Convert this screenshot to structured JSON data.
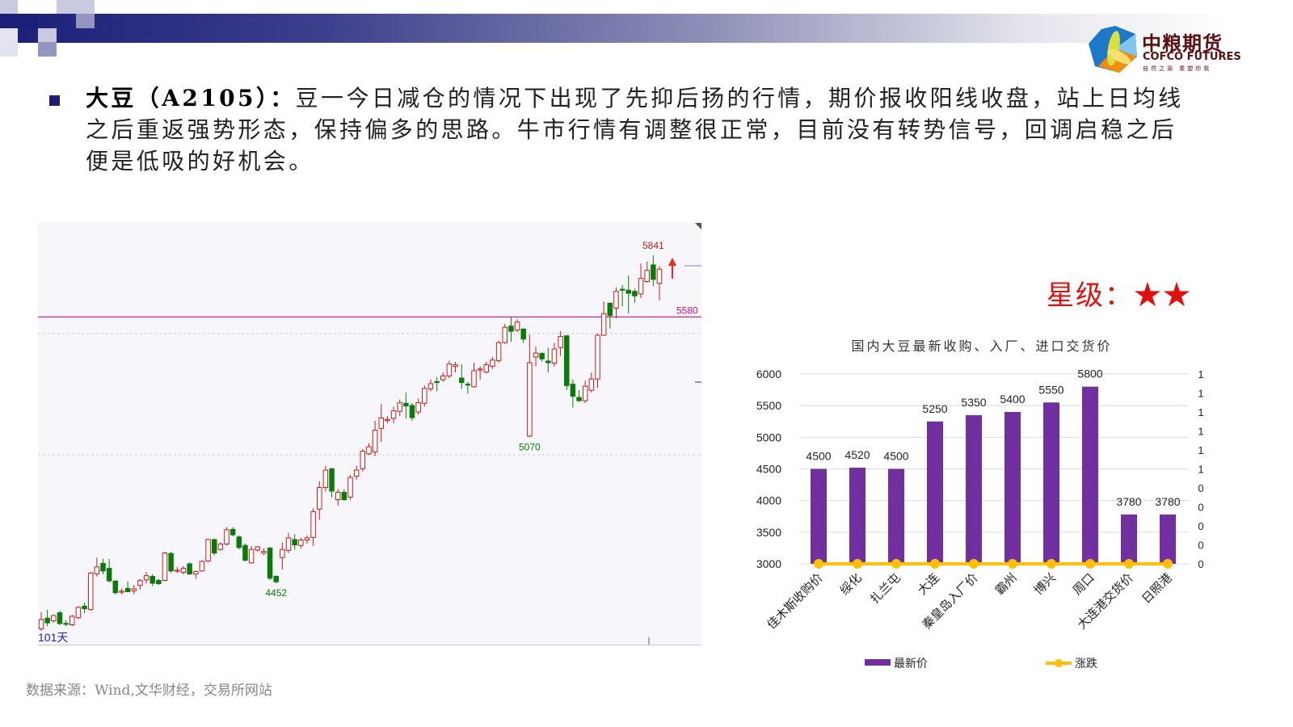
{
  "header": {
    "logo_cn": "中粮期货",
    "logo_en": "COFCO FUTURES",
    "logo_slogan": "自然之源 重塑你我",
    "accent_color": "#1b1f78"
  },
  "paragraph": {
    "lead": "大豆（A2105）：",
    "lines": [
      "豆一今日减仓的情况下出现了先抑后扬的行情，期价报收阳线收盘，站上日均线",
      "之后重返强势形态，保持偏多的思路。牛市行情有调整很正常，目前没有转势信号，回调启稳之后",
      "便是低吸的好机会。"
    ]
  },
  "rating": {
    "label": "星级：",
    "stars": "★★",
    "count": 2,
    "color": "#e01010"
  },
  "source": "数据来源：Wind,文华财经，交易所网站",
  "chart_data": [
    {
      "type": "candlestick",
      "period_label": "101天",
      "up_color": "#d01818",
      "down_color": "#0a7a0a",
      "annotations": {
        "high": 5841,
        "low_1": 4452,
        "low_2": 5070,
        "line_label": "5580",
        "line_value": 5580,
        "line_color": "#d0106a"
      },
      "candle_format": [
        "open",
        "close",
        "high",
        "low"
      ],
      "candles": [
        [
          4259,
          4298,
          4330,
          4250
        ],
        [
          4304,
          4284,
          4340,
          4270
        ],
        [
          4293,
          4315,
          4320,
          4285
        ],
        [
          4327,
          4281,
          4335,
          4275
        ],
        [
          4282,
          4280,
          4295,
          4270
        ],
        [
          4276,
          4312,
          4318,
          4270
        ],
        [
          4306,
          4350,
          4355,
          4300
        ],
        [
          4355,
          4344,
          4370,
          4325
        ],
        [
          4341,
          4495,
          4500,
          4335
        ],
        [
          4492,
          4521,
          4560,
          4480
        ],
        [
          4536,
          4504,
          4555,
          4490
        ],
        [
          4515,
          4462,
          4555,
          4455
        ],
        [
          4461,
          4412,
          4465,
          4405
        ],
        [
          4418,
          4418,
          4430,
          4405
        ],
        [
          4430,
          4416,
          4460,
          4415
        ],
        [
          4420,
          4428,
          4445,
          4405
        ],
        [
          4443,
          4463,
          4470,
          4425
        ],
        [
          4466,
          4484,
          4500,
          4450
        ],
        [
          4481,
          4452,
          4490,
          4440
        ],
        [
          4464,
          4450,
          4470,
          4445
        ],
        [
          4464,
          4580,
          4585,
          4460
        ],
        [
          4578,
          4504,
          4585,
          4495
        ],
        [
          4507,
          4507,
          4520,
          4495
        ],
        [
          4498,
          4515,
          4525,
          4490
        ],
        [
          4534,
          4491,
          4540,
          4488
        ],
        [
          4491,
          4501,
          4505,
          4470
        ],
        [
          4504,
          4544,
          4550,
          4500
        ],
        [
          4546,
          4637,
          4640,
          4540
        ],
        [
          4637,
          4580,
          4640,
          4570
        ],
        [
          4595,
          4618,
          4625,
          4590
        ],
        [
          4618,
          4678,
          4690,
          4612
        ],
        [
          4680,
          4657,
          4690,
          4650
        ],
        [
          4648,
          4603,
          4655,
          4595
        ],
        [
          4612,
          4549,
          4620,
          4545
        ],
        [
          4538,
          4595,
          4610,
          4535
        ],
        [
          4593,
          4606,
          4610,
          4585
        ],
        [
          4580,
          4587,
          4600,
          4570
        ],
        [
          4601,
          4473,
          4605,
          4465
        ],
        [
          4481,
          4458,
          4485,
          4452
        ],
        [
          4561,
          4595,
          4625,
          4510
        ],
        [
          4591,
          4644,
          4665,
          4580
        ],
        [
          4637,
          4614,
          4660,
          4595
        ],
        [
          4612,
          4635,
          4645,
          4600
        ],
        [
          4635,
          4644,
          4655,
          4620
        ],
        [
          4646,
          4755,
          4770,
          4610
        ],
        [
          4766,
          4857,
          4885,
          4720
        ],
        [
          4857,
          4931,
          4950,
          4840
        ],
        [
          4937,
          4842,
          4940,
          4815
        ],
        [
          4806,
          4837,
          4850,
          4780
        ],
        [
          4837,
          4806,
          4850,
          4800
        ],
        [
          4817,
          4900,
          4910,
          4805
        ],
        [
          4905,
          4931,
          4950,
          4890
        ],
        [
          4937,
          5011,
          5020,
          4925
        ],
        [
          5000,
          5030,
          5045,
          4995
        ],
        [
          5008,
          5100,
          5140,
          4990
        ],
        [
          5108,
          5152,
          5210,
          5050
        ],
        [
          5146,
          5146,
          5160,
          5130
        ],
        [
          5150,
          5182,
          5200,
          5130
        ],
        [
          5180,
          5216,
          5230,
          5160
        ],
        [
          5214,
          5203,
          5260,
          5150
        ],
        [
          5205,
          5153,
          5215,
          5140
        ],
        [
          5177,
          5217,
          5235,
          5165
        ],
        [
          5214,
          5277,
          5290,
          5200
        ],
        [
          5275,
          5297,
          5315,
          5265
        ],
        [
          5306,
          5305,
          5325,
          5265
        ],
        [
          5314,
          5330,
          5345,
          5305
        ],
        [
          5330,
          5380,
          5395,
          5320
        ],
        [
          5370,
          5377,
          5390,
          5345
        ],
        [
          5321,
          5302,
          5380,
          5275
        ],
        [
          5295,
          5291,
          5305,
          5255
        ],
        [
          5284,
          5352,
          5385,
          5280
        ],
        [
          5359,
          5359,
          5370,
          5315
        ],
        [
          5347,
          5377,
          5390,
          5340
        ],
        [
          5371,
          5397,
          5410,
          5360
        ],
        [
          5395,
          5471,
          5480,
          5385
        ],
        [
          5471,
          5536,
          5550,
          5465
        ],
        [
          5541,
          5519,
          5580,
          5475
        ],
        [
          5524,
          5558,
          5570,
          5515
        ],
        [
          5528,
          5486,
          5535,
          5470
        ],
        [
          5075,
          5386,
          5505,
          5070
        ],
        [
          5410,
          5427,
          5455,
          5370
        ],
        [
          5425,
          5402,
          5430,
          5390
        ],
        [
          5393,
          5386,
          5450,
          5345
        ],
        [
          5384,
          5444,
          5470,
          5370
        ],
        [
          5450,
          5497,
          5520,
          5415
        ],
        [
          5500,
          5289,
          5500,
          5270
        ],
        [
          5295,
          5244,
          5315,
          5196
        ],
        [
          5239,
          5225,
          5270,
          5220
        ],
        [
          5225,
          5286,
          5310,
          5215
        ],
        [
          5269,
          5317,
          5345,
          5260
        ],
        [
          5317,
          5502,
          5510,
          5280
        ],
        [
          5502,
          5594,
          5645,
          5500
        ],
        [
          5638,
          5586,
          5640,
          5530
        ],
        [
          5617,
          5688,
          5705,
          5575
        ],
        [
          5697,
          5696,
          5715,
          5625
        ],
        [
          5693,
          5680,
          5755,
          5595
        ],
        [
          5688,
          5669,
          5700,
          5640
        ],
        [
          5677,
          5743,
          5806,
          5660
        ],
        [
          5730,
          5777,
          5815,
          5725
        ],
        [
          5800,
          5739,
          5841,
          5710
        ],
        [
          5722,
          5782,
          5795,
          5650
        ]
      ]
    },
    {
      "type": "bar",
      "title": "国内大豆最新收购、入厂、进口交货价",
      "categories": [
        "佳木斯收购价",
        "绥化",
        "扎兰屯",
        "大连",
        "秦皇岛入厂价",
        "霸州",
        "博兴",
        "周口",
        "大连港交货价",
        "日照港"
      ],
      "series": [
        {
          "name": "最新价",
          "type": "bar",
          "axis": "left",
          "color": "#7030a0",
          "values": [
            4500,
            4520,
            4500,
            5250,
            5350,
            5400,
            5550,
            5800,
            3780,
            3780
          ]
        },
        {
          "name": "涨跌",
          "type": "line",
          "axis": "right",
          "color": "#ffc000",
          "values": [
            0,
            0,
            0,
            0,
            0,
            0,
            0,
            0,
            0,
            0
          ]
        }
      ],
      "ylim": [
        3000,
        6000
      ],
      "yticks": [
        "6000",
        "5500",
        "5000",
        "4500",
        "4000",
        "3500",
        "3000"
      ],
      "y2ticks": [
        "1",
        "1",
        "1",
        "1",
        "1",
        "1",
        "0",
        "0",
        "0",
        "0",
        "0"
      ],
      "grid": true,
      "legend": "bottom"
    }
  ]
}
